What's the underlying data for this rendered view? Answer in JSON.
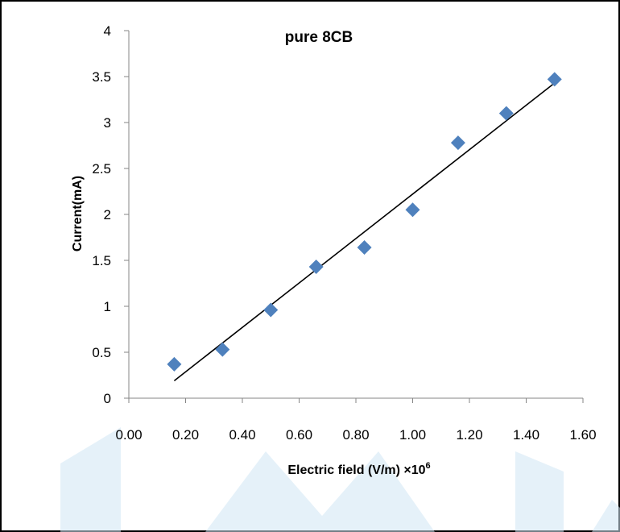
{
  "chart_data": {
    "type": "scatter",
    "title": "pure 8CB",
    "xlabel": "Electric  field (V/m) ×10",
    "xlabel_superscript": "6",
    "ylabel": "Current(mA)",
    "xlim": [
      0.0,
      1.6
    ],
    "ylim": [
      0,
      4
    ],
    "x_ticks": [
      "0.00",
      "0.20",
      "0.40",
      "0.60",
      "0.80",
      "1.00",
      "1.20",
      "1.40",
      "1.60"
    ],
    "y_ticks": [
      "0",
      "0.5",
      "1",
      "1.5",
      "2",
      "2.5",
      "3",
      "3.5",
      "4"
    ],
    "grid": false,
    "series": [
      {
        "x": [
          0.16,
          0.33,
          0.5,
          0.66,
          0.83,
          1.0,
          1.16,
          1.33,
          1.5
        ],
        "y": [
          0.37,
          0.53,
          0.96,
          1.43,
          1.64,
          2.05,
          2.78,
          3.1,
          3.47
        ]
      }
    ],
    "trendline": {
      "type": "linear",
      "x": [
        0.16,
        1.5
      ],
      "y": [
        0.19,
        3.43
      ]
    },
    "marker": "diamond",
    "marker_color": "#4f81bd",
    "trendline_color": "#000000"
  },
  "watermark_color": "#cfe6f4"
}
